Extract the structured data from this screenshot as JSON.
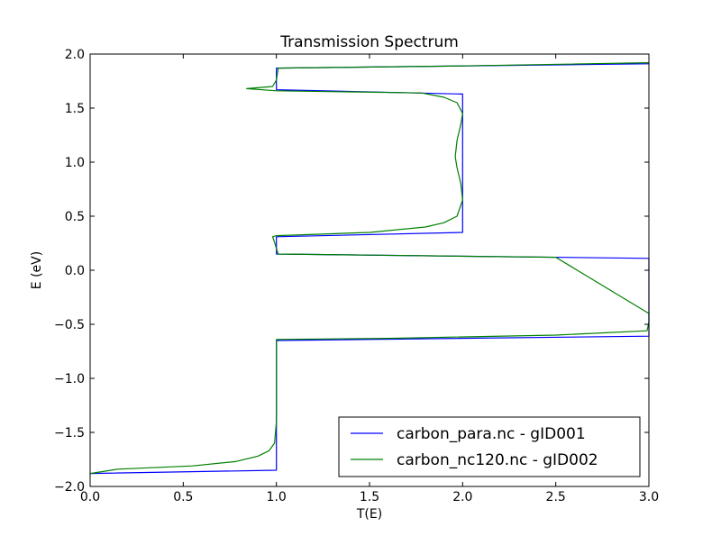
{
  "chart_data": {
    "type": "line",
    "title": "Transmission Spectrum",
    "xlabel": "T(E)",
    "ylabel": "E (eV)",
    "xlim": [
      0.0,
      3.0
    ],
    "ylim": [
      -2.0,
      2.0
    ],
    "xticks": [
      "0.0",
      "0.5",
      "1.0",
      "1.5",
      "2.0",
      "2.5",
      "3.0"
    ],
    "xtick_values": [
      0.0,
      0.5,
      1.0,
      1.5,
      2.0,
      2.5,
      3.0
    ],
    "yticks": [
      "2.0",
      "1.5",
      "1.0",
      "0.5",
      "0.0",
      "−0.5",
      "−1.0",
      "−1.5",
      "−2.0"
    ],
    "ytick_values": [
      2.0,
      1.5,
      1.0,
      0.5,
      0.0,
      -0.5,
      -1.0,
      -1.5,
      -2.0
    ],
    "grid": false,
    "legend_position": "lower-right",
    "series": [
      {
        "name": "carbon_para.nc - gID001",
        "color": "#0000ff",
        "x": [
          0.0,
          1.0,
          1.0,
          1.0,
          3.0,
          3.0,
          1.0,
          1.0,
          1.0,
          2.0,
          2.0,
          1.0,
          1.0,
          3.0
        ],
        "y": [
          -1.88,
          -1.85,
          -1.5,
          -0.65,
          -0.61,
          0.11,
          0.15,
          0.29,
          0.31,
          0.35,
          1.63,
          1.67,
          1.87,
          1.91
        ]
      },
      {
        "name": "carbon_nc120.nc - gID002",
        "color": "#008000",
        "x": [
          0.0,
          0.15,
          0.55,
          0.78,
          0.9,
          0.96,
          0.99,
          1.0,
          1.0,
          1.0,
          1.6,
          2.5,
          2.99,
          3.0,
          3.0,
          2.5,
          1.5,
          1.01,
          1.0,
          0.99,
          0.98,
          1.0,
          1.5,
          1.8,
          1.9,
          1.97,
          2.0,
          1.99,
          1.97,
          1.96,
          1.97,
          1.99,
          2.0,
          1.97,
          1.9,
          1.78,
          1.0,
          0.84,
          0.98,
          1.0,
          1.01,
          2.0,
          3.0
        ],
        "y": [
          -1.88,
          -1.84,
          -1.81,
          -1.77,
          -1.72,
          -1.67,
          -1.6,
          -1.4,
          -1.0,
          -0.64,
          -0.63,
          -0.6,
          -0.56,
          -0.48,
          -0.4,
          0.12,
          0.14,
          0.15,
          0.2,
          0.26,
          0.31,
          0.32,
          0.35,
          0.4,
          0.44,
          0.5,
          0.65,
          0.8,
          0.95,
          1.05,
          1.2,
          1.35,
          1.45,
          1.55,
          1.6,
          1.64,
          1.66,
          1.68,
          1.7,
          1.76,
          1.87,
          1.89,
          1.92
        ]
      }
    ]
  }
}
